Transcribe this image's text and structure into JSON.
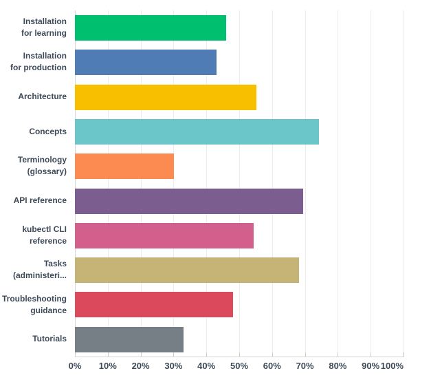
{
  "chart_data": {
    "type": "bar",
    "orientation": "horizontal",
    "categories": [
      "Installation for learning",
      "Installation for production",
      "Architecture",
      "Concepts",
      "Terminology (glossary)",
      "API reference",
      "kubectl CLI reference",
      "Tasks (administeri...",
      "Troubleshooting guidance",
      "Tutorials"
    ],
    "display_labels": [
      [
        "Installation",
        "for learning"
      ],
      [
        "Installation",
        "for production"
      ],
      [
        "Architecture"
      ],
      [
        "Concepts"
      ],
      [
        "Terminology",
        "(glossary)"
      ],
      [
        "API reference"
      ],
      [
        "kubectl CLI",
        "reference"
      ],
      [
        "Tasks",
        "(administeri..."
      ],
      [
        "Troubleshooting",
        "guidance"
      ],
      [
        "Tutorials"
      ]
    ],
    "values": [
      46.1,
      43.2,
      55.3,
      74.3,
      30.1,
      69.5,
      54.3,
      68.3,
      48.2,
      33.0
    ],
    "unit": "%",
    "colors": [
      "#00BF6F",
      "#4F7CB5",
      "#F8BE00",
      "#6BC6CA",
      "#FC8B51",
      "#7B5D8F",
      "#D35F8D",
      "#C5B476",
      "#DA4A5C",
      "#767E86"
    ],
    "xlabel": "",
    "ylabel": "",
    "xlim": [
      0,
      100
    ],
    "xticklabels": [
      "0%",
      "10%",
      "20%",
      "30%",
      "40%",
      "50%",
      "60%",
      "70%",
      "80%",
      "90%",
      "100%"
    ],
    "grid": true,
    "legend": false
  },
  "palette": {
    "text": "#3E4A59",
    "gridline": "#ECECEC",
    "axis_line": "#D6D6D6",
    "background": "#FFFFFF"
  }
}
